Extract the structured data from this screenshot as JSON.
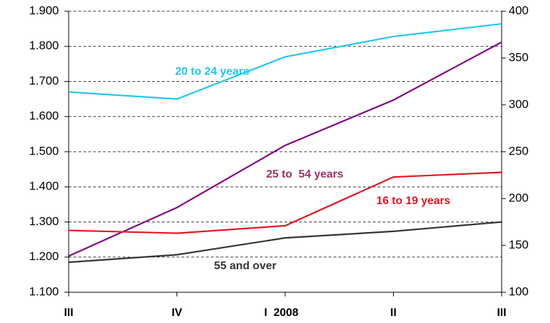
{
  "chart_data": {
    "type": "line",
    "categories": [
      "III",
      "IV",
      "I  2008",
      "II",
      "III"
    ],
    "series": [
      {
        "name": "20 to 24 years",
        "color": "#1ec8f0",
        "values": [
          1670,
          1650,
          1770,
          1828,
          1864
        ]
      },
      {
        "name": "25 to  54 years",
        "color": "#800080",
        "label_color": "#993366",
        "values": [
          1203,
          1341,
          1518,
          1647,
          1812
        ]
      },
      {
        "name": "16 to 19 years",
        "color": "#e8141e",
        "axis": "y2",
        "values": [
          166,
          163,
          171,
          223,
          228
        ]
      },
      {
        "name": "55 and over",
        "color": "#333333",
        "axis": "y2",
        "values": [
          132,
          140,
          158,
          165,
          175
        ]
      }
    ],
    "ylim": [
      1100,
      1900
    ],
    "yticks": [
      {
        "value": 1100,
        "label": "1.100"
      },
      {
        "value": 1200,
        "label": "1.200"
      },
      {
        "value": 1300,
        "label": "1.300"
      },
      {
        "value": 1400,
        "label": "1.400"
      },
      {
        "value": 1500,
        "label": "1.500"
      },
      {
        "value": 1600,
        "label": "1.600"
      },
      {
        "value": 1700,
        "label": "1.700"
      },
      {
        "value": 1800,
        "label": "1.800"
      },
      {
        "value": 1900,
        "label": "1.900"
      }
    ],
    "y2lim": [
      100,
      400
    ],
    "y2ticks": [
      100,
      150,
      200,
      250,
      300,
      350,
      400
    ],
    "grid": true
  }
}
